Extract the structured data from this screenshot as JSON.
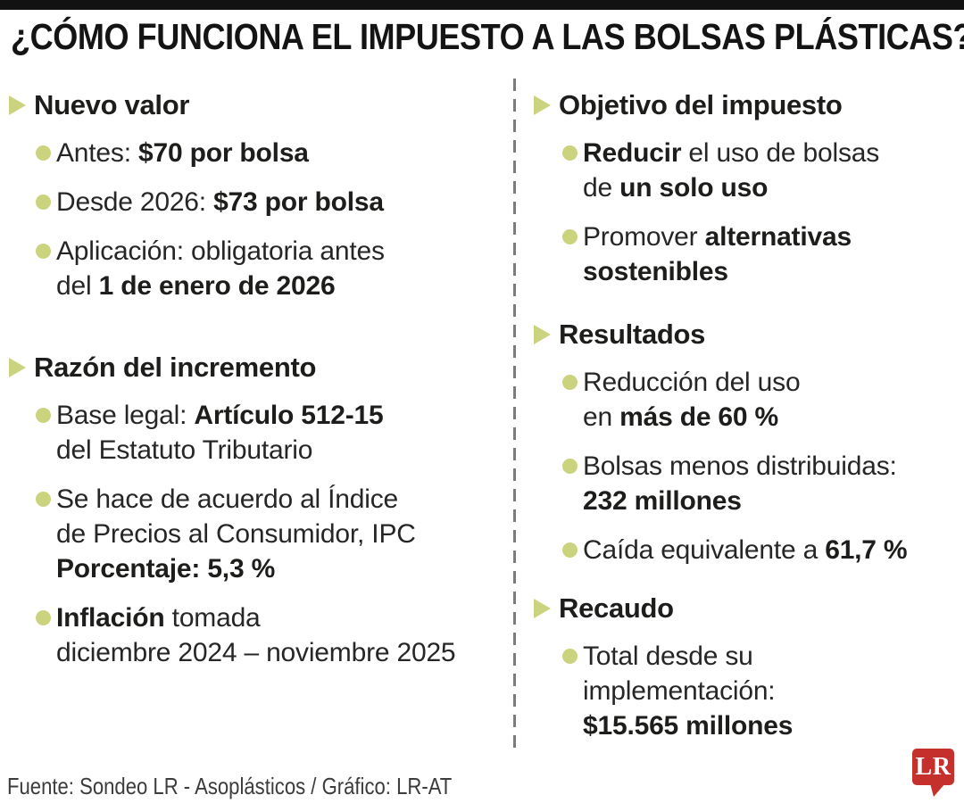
{
  "title": "¿CÓMO FUNCIONA EL IMPUESTO A LAS BOLSAS PLÁSTICAS?",
  "colors": {
    "accent": "#ccd37e",
    "divider": "#7c7c7c",
    "logo_red": "#c5302c",
    "text": "#262626"
  },
  "icons": {
    "section_marker": "right-pointing-triangle",
    "bullet": "filled-circle"
  },
  "columns": [
    {
      "sections": [
        {
          "heading": "Nuevo valor",
          "items": [
            {
              "lines": [
                [
                  {
                    "text": "Antes: "
                  },
                  {
                    "text": "$70 por bolsa",
                    "bold": true
                  }
                ]
              ]
            },
            {
              "lines": [
                [
                  {
                    "text": "Desde 2026: "
                  },
                  {
                    "text": "$73 por bolsa",
                    "bold": true
                  }
                ]
              ]
            },
            {
              "lines": [
                [
                  {
                    "text": "Aplicación: obligatoria antes"
                  }
                ],
                [
                  {
                    "text": "del "
                  },
                  {
                    "text": "1 de enero de 2026",
                    "bold": true
                  }
                ]
              ]
            }
          ]
        },
        {
          "heading": "Razón del incremento",
          "items": [
            {
              "lines": [
                [
                  {
                    "text": "Base legal: "
                  },
                  {
                    "text": "Artículo 512-15",
                    "bold": true
                  }
                ],
                [
                  {
                    "text": "del Estatuto Tributario"
                  }
                ]
              ]
            },
            {
              "lines": [
                [
                  {
                    "text": "Se hace de acuerdo al Índice"
                  }
                ],
                [
                  {
                    "text": "de Precios al Consumidor, IPC"
                  }
                ],
                [
                  {
                    "text": "Porcentaje: 5,3 %",
                    "bold": true
                  }
                ]
              ]
            },
            {
              "lines": [
                [
                  {
                    "text": "Inflación",
                    "bold": true
                  },
                  {
                    "text": " tomada"
                  }
                ],
                [
                  {
                    "text": "diciembre 2024 – noviembre 2025"
                  }
                ]
              ]
            }
          ]
        }
      ]
    },
    {
      "sections": [
        {
          "heading": "Objetivo del impuesto",
          "items": [
            {
              "lines": [
                [
                  {
                    "text": "Reducir",
                    "bold": true
                  },
                  {
                    "text": " el uso de bolsas"
                  }
                ],
                [
                  {
                    "text": "de "
                  },
                  {
                    "text": "un solo uso",
                    "bold": true
                  }
                ]
              ]
            },
            {
              "lines": [
                [
                  {
                    "text": "Promover "
                  },
                  {
                    "text": "alternativas",
                    "bold": true
                  }
                ],
                [
                  {
                    "text": "sostenibles",
                    "bold": true
                  }
                ]
              ]
            }
          ]
        },
        {
          "heading": "Resultados",
          "items": [
            {
              "lines": [
                [
                  {
                    "text": "Reducción del uso"
                  }
                ],
                [
                  {
                    "text": "en "
                  },
                  {
                    "text": "más de 60 %",
                    "bold": true
                  }
                ]
              ]
            },
            {
              "lines": [
                [
                  {
                    "text": "Bolsas menos distribuidas:"
                  }
                ],
                [
                  {
                    "text": "232 millones",
                    "bold": true
                  }
                ]
              ]
            },
            {
              "lines": [
                [
                  {
                    "text": "Caída equivalente a "
                  },
                  {
                    "text": "61,7 %",
                    "bold": true
                  }
                ]
              ]
            }
          ]
        },
        {
          "heading": "Recaudo",
          "items": [
            {
              "lines": [
                [
                  {
                    "text": "Total desde su"
                  }
                ],
                [
                  {
                    "text": "implementación:"
                  }
                ],
                [
                  {
                    "text": "$15.565 millones",
                    "bold": true
                  }
                ]
              ]
            }
          ]
        }
      ]
    }
  ],
  "footer": {
    "source": "Fuente: Sondeo LR - Asoplásticos / Gráfico: LR-AT",
    "logo_text": "LR"
  }
}
